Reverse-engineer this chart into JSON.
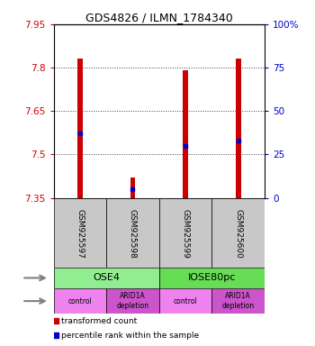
{
  "title": "GDS4826 / ILMN_1784340",
  "samples": [
    "GSM925597",
    "GSM925598",
    "GSM925599",
    "GSM925600"
  ],
  "transformed_counts": [
    7.83,
    7.42,
    7.79,
    7.83
  ],
  "percentile_ranks": [
    37,
    5,
    30,
    33
  ],
  "ylim_left": [
    7.35,
    7.95
  ],
  "ylim_right": [
    0,
    100
  ],
  "yticks_left": [
    7.35,
    7.5,
    7.65,
    7.8,
    7.95
  ],
  "yticks_right": [
    0,
    25,
    50,
    75,
    100
  ],
  "cell_lines": [
    [
      "OSE4",
      0,
      2
    ],
    [
      "IOSE80pc",
      2,
      4
    ]
  ],
  "protocols": [
    [
      "control",
      0,
      1
    ],
    [
      "ARID1A\ndepletion",
      1,
      2
    ],
    [
      "control",
      2,
      3
    ],
    [
      "ARID1A\ndepletion",
      3,
      4
    ]
  ],
  "cell_line_colors": [
    "#90EE90",
    "#66DD55"
  ],
  "protocol_colors_light": "#EE82EE",
  "protocol_colors_dark": "#CC55CC",
  "bar_color": "#CC0000",
  "dot_color": "#0000CC",
  "sample_box_color": "#C8C8C8",
  "grid_color": "#404040",
  "left_axis_color": "#CC0000",
  "right_axis_color": "#0000CC",
  "bar_width": 0.1
}
